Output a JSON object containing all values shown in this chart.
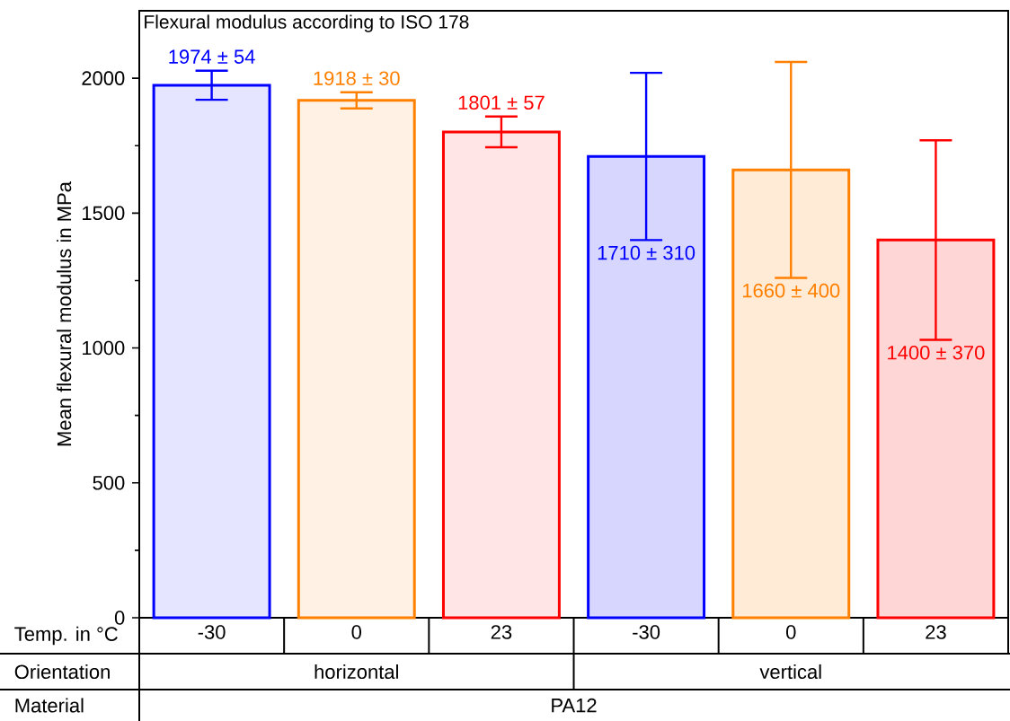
{
  "chart_data": {
    "type": "bar",
    "title": "Flexural modulus according to ISO 178",
    "ylabel": "Mean flexural modulus in MPa",
    "xlabel": "Temp. in °C",
    "categories": [
      "-30",
      "0",
      "23",
      "-30",
      "0",
      "23"
    ],
    "values": [
      1974,
      1918,
      1801,
      1710,
      1660,
      1400
    ],
    "errors": [
      54,
      30,
      57,
      310,
      400,
      370
    ],
    "value_labels": [
      "1974 ± 54",
      "1918 ± 30",
      "1801 ± 57",
      "1710 ± 310",
      "1660 ± 400",
      "1400 ± 370"
    ],
    "colors": [
      "#0000ff",
      "#ff8000",
      "#ff0000",
      "#0000ff",
      "#ff8000",
      "#ff0000"
    ],
    "ylim": [
      0,
      2250
    ],
    "yticks": [
      0,
      500,
      1000,
      1500,
      2000
    ],
    "annotations": [
      "Orientation",
      "horizontal",
      "vertical",
      "Material",
      "PA12"
    ]
  }
}
